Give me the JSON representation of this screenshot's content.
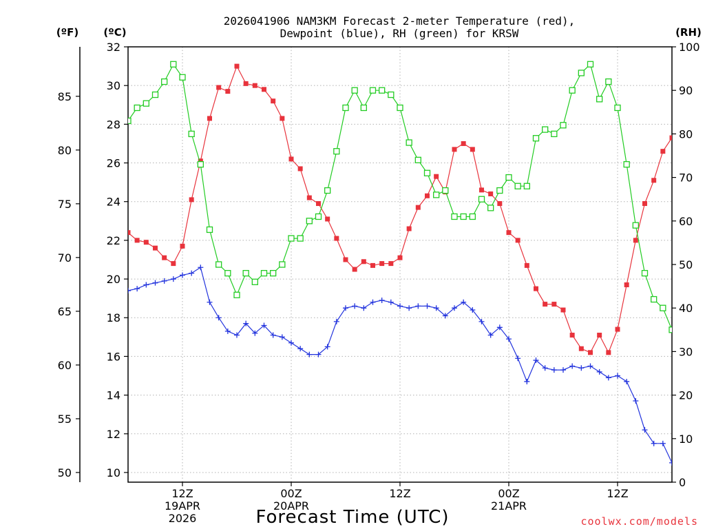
{
  "chart_data": {
    "type": "line",
    "title_line1": "2026041906 NAM3KM Forecast 2-meter Temperature (red),",
    "title_line2": "Dewpoint (blue), RH (green) for KRSW",
    "xlabel": "Forecast Time (UTC)",
    "credit": "coolwx.com/models",
    "units": {
      "fahrenheit": "(ºF)",
      "celsius": "(ºC)",
      "rh": "(RH)"
    },
    "x_hours_range": [
      0,
      60
    ],
    "ylim_celsius": [
      9.5,
      32
    ],
    "ylim_rh": [
      0,
      100
    ],
    "celsius_ticks": [
      "10",
      "12",
      "14",
      "16",
      "18",
      "20",
      "22",
      "24",
      "26",
      "28",
      "30",
      "32"
    ],
    "fahrenheit_ticks": [
      "50",
      "55",
      "60",
      "65",
      "70",
      "75",
      "80",
      "85"
    ],
    "rh_ticks": [
      "0",
      "10",
      "20",
      "30",
      "40",
      "50",
      "60",
      "70",
      "80",
      "90",
      "100"
    ],
    "time_ticks": [
      {
        "label": "12Z",
        "hour": 6,
        "date": "19APR",
        "year": "2026"
      },
      {
        "label": "00Z",
        "hour": 18,
        "date": "20APR",
        "year": ""
      },
      {
        "label": "12Z",
        "hour": 30,
        "date": "",
        "year": ""
      },
      {
        "label": "00Z",
        "hour": 42,
        "date": "21APR",
        "year": ""
      },
      {
        "label": "12Z",
        "hour": 54,
        "date": "",
        "year": ""
      }
    ],
    "series": [
      {
        "name": "2-meter Temperature (°C)",
        "color": "#e8333c",
        "marker": "filled-square",
        "axis": "celsius",
        "values": [
          22.4,
          22.0,
          21.9,
          21.6,
          21.1,
          20.8,
          21.7,
          24.1,
          26.1,
          28.3,
          29.9,
          29.7,
          31.0,
          30.1,
          30.0,
          29.8,
          29.2,
          28.3,
          26.2,
          25.7,
          24.2,
          23.9,
          23.1,
          22.1,
          21.0,
          20.5,
          20.9,
          20.7,
          20.8,
          20.8,
          21.1,
          22.6,
          23.7,
          24.3,
          25.3,
          24.5,
          26.7,
          27.0,
          26.7,
          24.6,
          24.4,
          23.9,
          22.4,
          22.0,
          20.7,
          19.5,
          18.7,
          18.7,
          18.4,
          17.1,
          16.4,
          16.2,
          17.1,
          16.2,
          17.4,
          19.7,
          22.0,
          23.9,
          25.1,
          26.6,
          27.3
        ]
      },
      {
        "name": "Dewpoint (°C)",
        "color": "#2233dd",
        "marker": "plus",
        "axis": "celsius",
        "values": [
          19.4,
          19.5,
          19.7,
          19.8,
          19.9,
          20.0,
          20.2,
          20.3,
          20.6,
          18.8,
          18.0,
          17.3,
          17.1,
          17.7,
          17.2,
          17.6,
          17.1,
          17.0,
          16.7,
          16.4,
          16.1,
          16.1,
          16.5,
          17.8,
          18.5,
          18.6,
          18.5,
          18.8,
          18.9,
          18.8,
          18.6,
          18.5,
          18.6,
          18.6,
          18.5,
          18.1,
          18.5,
          18.8,
          18.4,
          17.8,
          17.1,
          17.5,
          16.9,
          15.9,
          14.7,
          15.8,
          15.4,
          15.3,
          15.3,
          15.5,
          15.4,
          15.5,
          15.2,
          14.9,
          15.0,
          14.7,
          13.7,
          12.2,
          11.5,
          11.5,
          10.5
        ]
      },
      {
        "name": "Relative Humidity (%)",
        "color": "#22cc22",
        "marker": "open-square",
        "axis": "rh",
        "values": [
          83,
          86,
          87,
          89,
          92,
          96,
          93,
          80,
          73,
          58,
          50,
          48,
          43,
          48,
          46,
          48,
          48,
          50,
          56,
          56,
          60,
          61,
          67,
          76,
          86,
          90,
          86,
          90,
          90,
          89,
          86,
          78,
          74,
          71,
          66,
          67,
          61,
          61,
          61,
          65,
          63,
          67,
          70,
          68,
          68,
          79,
          81,
          80,
          82,
          90,
          94,
          96,
          88,
          92,
          86,
          73,
          59,
          48,
          42,
          40,
          35
        ]
      }
    ]
  }
}
